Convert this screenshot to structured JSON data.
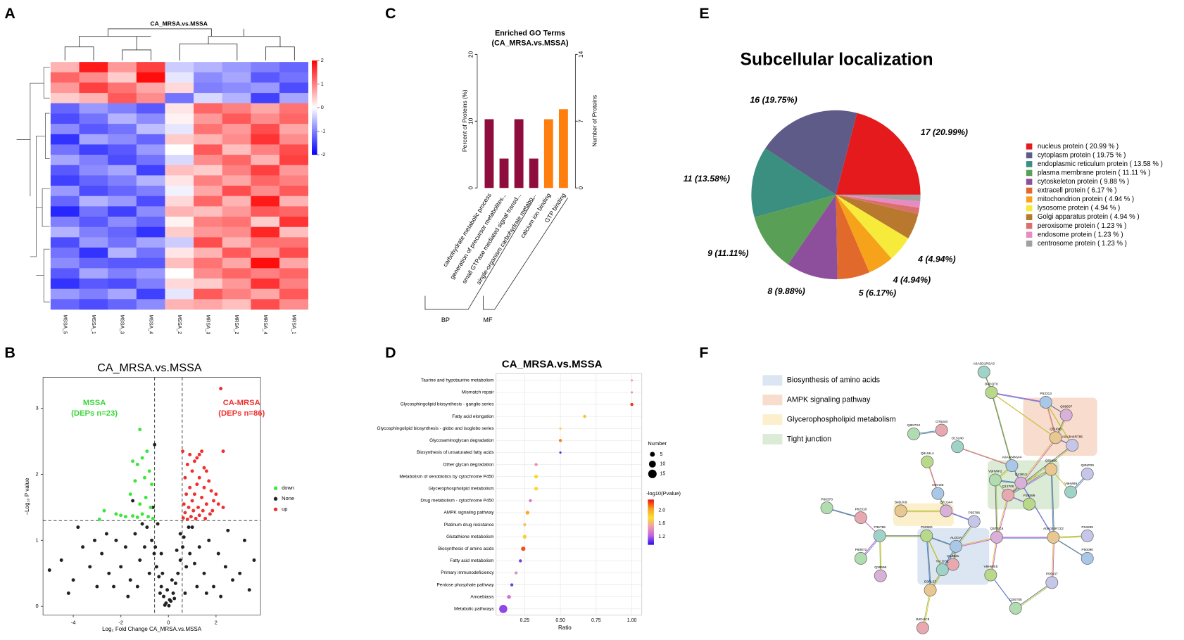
{
  "panel_labels": [
    "A",
    "B",
    "C",
    "D",
    "E",
    "F"
  ],
  "chart_data": [
    {
      "type": "heatmap",
      "title": "CA_MRSA.vs.MSSA",
      "columns": [
        "MSSA_5",
        "MSSA_1",
        "MSSA_3",
        "MSSA_4",
        "MSSA_2",
        "MRSA_3",
        "MRSA_2",
        "MRSA_4",
        "MRSA_1"
      ],
      "values": [
        [
          0.6,
          1.8,
          0.8,
          1.5,
          -0.4,
          -0.6,
          -0.8,
          -1.0,
          -1.2
        ],
        [
          1.2,
          0.9,
          0.4,
          1.9,
          -0.2,
          -0.9,
          -0.7,
          -1.3,
          -1.1
        ],
        [
          0.8,
          1.5,
          1.1,
          0.7,
          0.3,
          -1.0,
          -0.9,
          -0.8,
          -1.4
        ],
        [
          0.4,
          0.6,
          1.3,
          0.9,
          -1.1,
          -0.3,
          -0.6,
          -1.5,
          -0.7
        ],
        [
          -1.2,
          -0.8,
          -1.0,
          -1.3,
          0.2,
          1.2,
          1.0,
          0.7,
          1.1
        ],
        [
          -1.4,
          -1.1,
          -0.6,
          -0.9,
          0.1,
          0.8,
          1.3,
          0.9,
          1.2
        ],
        [
          -0.9,
          -1.3,
          -1.1,
          -0.5,
          -0.2,
          1.1,
          0.8,
          1.4,
          0.7
        ],
        [
          -1.6,
          -0.7,
          -0.9,
          -1.2,
          0.4,
          0.6,
          0.9,
          1.6,
          0.9
        ],
        [
          -1.1,
          -1.5,
          -1.3,
          -0.8,
          0.0,
          1.3,
          0.5,
          1.0,
          1.4
        ],
        [
          -0.7,
          -1.0,
          -1.4,
          -1.1,
          -0.3,
          0.9,
          1.2,
          0.6,
          1.5
        ],
        [
          -1.3,
          -0.9,
          -0.7,
          -1.5,
          0.5,
          0.4,
          1.0,
          1.5,
          0.8
        ],
        [
          -1.5,
          -1.2,
          -1.0,
          -0.6,
          0.2,
          1.0,
          0.7,
          1.2,
          1.0
        ],
        [
          -0.8,
          -1.4,
          -1.2,
          -1.0,
          -0.1,
          0.7,
          1.4,
          0.9,
          1.3
        ],
        [
          -1.2,
          -0.6,
          -0.8,
          -1.4,
          0.3,
          1.2,
          0.6,
          1.8,
          0.6
        ],
        [
          -1.7,
          -1.1,
          -1.5,
          -0.9,
          0.6,
          0.5,
          0.8,
          1.3,
          1.2
        ],
        [
          -1.0,
          -1.3,
          -0.9,
          -1.2,
          0.1,
          1.0,
          1.1,
          0.4,
          1.6
        ],
        [
          -0.6,
          -1.0,
          -1.2,
          -1.6,
          0.4,
          0.8,
          0.9,
          1.7,
          0.5
        ],
        [
          -1.4,
          -0.8,
          -1.1,
          -0.7,
          -0.4,
          1.4,
          0.6,
          1.1,
          1.1
        ],
        [
          -1.1,
          -1.6,
          -0.6,
          -1.1,
          0.2,
          0.6,
          1.3,
          0.8,
          1.4
        ],
        [
          -0.9,
          -1.2,
          -1.3,
          -1.3,
          0.5,
          1.1,
          0.7,
          1.9,
          0.7
        ],
        [
          -1.3,
          -0.7,
          -1.0,
          -0.8,
          0.0,
          0.9,
          1.2,
          1.0,
          1.2
        ],
        [
          -1.6,
          -1.3,
          -1.4,
          -1.0,
          0.3,
          0.4,
          0.8,
          1.6,
          1.0
        ],
        [
          -0.8,
          -1.0,
          -0.7,
          -1.5,
          -0.2,
          1.3,
          1.0,
          0.7,
          1.3
        ],
        [
          -1.2,
          -1.4,
          -1.2,
          -0.9,
          0.6,
          0.7,
          0.5,
          1.4,
          0.9
        ]
      ],
      "clim": [
        -2,
        2
      ],
      "cticks": [
        2,
        1,
        0,
        -1,
        -2
      ],
      "colors": [
        "#0000ff",
        "#ffffff",
        "#ff0000"
      ]
    },
    {
      "type": "scatter",
      "title": "CA_MRSA.vs.MSSA",
      "xlabel": "Log₂ Fold Change CA_MRSA.vs.MSSA",
      "ylabel": "−Log₁₀ P value",
      "xlim": [
        -5.27,
        3.87
      ],
      "ylim": [
        -0.13,
        3.47
      ],
      "xticks": [
        -4,
        -2,
        0,
        2
      ],
      "yticks": [
        0,
        1,
        2,
        3
      ],
      "thresholds": {
        "x": [
          -0.58,
          0.58
        ],
        "y": 1.3
      },
      "annotations": [
        {
          "text": "MSSA",
          "color": "#3ad63a"
        },
        {
          "text": "(DEPs n=23)",
          "color": "#3ad63a"
        },
        {
          "text": "CA-MRSA",
          "color": "#f03030"
        },
        {
          "text": "(DEPs n=86)",
          "color": "#f03030"
        }
      ],
      "series": [
        {
          "name": "down",
          "color": "#3ce63c",
          "x": [
            -1.2,
            -0.9,
            -1.1,
            -1.3,
            -0.8,
            -1.5,
            -1.0,
            -0.7,
            -1.4,
            -1.6,
            -0.95,
            -1.2,
            -0.75,
            -2.7,
            -2.2,
            -2.0,
            -1.8,
            -1.5,
            -1.3,
            -1.1,
            -0.85,
            -2.9,
            -0.65
          ],
          "values": [
            2.68,
            2.35,
            2.25,
            2.15,
            2.05,
            2.2,
            1.95,
            1.85,
            1.9,
            1.7,
            1.65,
            1.55,
            1.5,
            1.45,
            1.4,
            1.38,
            1.36,
            1.37,
            1.35,
            1.4,
            1.36,
            1.32,
            1.33
          ]
        },
        {
          "name": "None",
          "color": "#222222",
          "x": [
            -0.1,
            0.1,
            -0.2,
            0.2,
            -0.3,
            0.3,
            -0.15,
            0.05,
            -0.4,
            0.4,
            -0.5,
            0.5,
            -0.35,
            0.25,
            -0.6,
            0.6,
            -0.7,
            0.65,
            -0.8,
            0.75,
            -1.0,
            0.9,
            -1.2,
            1.1,
            -1.4,
            1.3,
            -1.6,
            1.5,
            -1.8,
            1.7,
            -2.0,
            1.9,
            -2.2,
            2.1,
            -2.5,
            2.4,
            -2.8,
            2.7,
            -3.0,
            3.0,
            -3.3,
            3.4,
            -3.6,
            -4.0,
            -4.5,
            -5.0,
            -0.9,
            0.85,
            -1.1,
            1.0,
            -0.45,
            0.5,
            -2.6,
            2.5,
            -3.8,
            -1.3,
            1.2,
            -0.55,
            0.7,
            -0.25,
            0.15,
            -1.7,
            1.6,
            -2.3,
            2.2,
            -3.1,
            3.2,
            -4.2,
            3.6,
            -0.65,
            -0.58,
            -1.5,
            -0.3,
            0.35,
            -0.05,
            0.02
          ],
          "values": [
            0.05,
            0.08,
            0.15,
            0.2,
            0.3,
            0.35,
            0.02,
            0.1,
            0.45,
            0.5,
            0.6,
            0.7,
            0.2,
            0.12,
            0.8,
            0.9,
            1.0,
            1.05,
            0.5,
            0.6,
            0.9,
            0.8,
            0.7,
            0.65,
            1.1,
            0.9,
            0.4,
            0.5,
            0.9,
            1.0,
            0.6,
            0.3,
            1.0,
            0.8,
            0.5,
            0.6,
            0.8,
            0.4,
            0.3,
            0.5,
            0.6,
            0.25,
            0.9,
            0.4,
            0.7,
            0.55,
            1.2,
            1.2,
            1.25,
            1.2,
            1.25,
            1.1,
            1.1,
            1.15,
            1.2,
            0.3,
            0.3,
            0.9,
            0.2,
            0.5,
            0.4,
            0.15,
            0.2,
            0.3,
            0.15,
            1.0,
            1.0,
            0.2,
            0.7,
            1.5,
            2.45,
            1.6,
            0.8,
            0.85,
            0.25,
            0.01
          ]
        },
        {
          "name": "up",
          "color": "#f03030",
          "x": [
            2.2,
            2.3,
            0.6,
            0.9,
            1.3,
            1.4,
            1.2,
            0.8,
            1.1,
            1.5,
            1.6,
            1.0,
            1.3,
            0.7,
            1.7,
            1.2,
            0.9,
            1.5,
            1.8,
            2.0,
            1.1,
            0.75,
            1.4,
            1.9,
            1.0,
            0.65,
            1.6,
            1.25,
            0.85,
            2.1,
            1.45,
            1.05,
            0.7,
            1.75,
            1.3,
            0.95,
            0.62,
            1.15,
            1.55,
            1.85,
            2.3,
            0.8
          ],
          "values": [
            3.3,
            2.35,
            2.35,
            2.3,
            2.3,
            2.35,
            2.25,
            2.15,
            2.2,
            2.1,
            2.05,
            2.05,
            1.95,
            1.95,
            1.9,
            1.85,
            1.8,
            1.8,
            1.75,
            1.7,
            1.7,
            1.7,
            1.65,
            1.6,
            1.6,
            1.55,
            1.55,
            1.5,
            1.5,
            1.55,
            1.45,
            1.45,
            1.42,
            1.4,
            1.38,
            1.36,
            1.34,
            1.33,
            1.33,
            1.45,
            1.5,
            1.32
          ]
        }
      ]
    },
    {
      "type": "bar",
      "title": "Enriched GO Terms",
      "subtitle": "(CA_MRSA.vs.MSSA)",
      "categories": [
        "carbohydrate metabolic process",
        "generation of precursor metabolites...",
        "small GTPase mediated signal transd...",
        "single-organism carbohydrate metabo...",
        "calcium ion binding",
        "GTP binding"
      ],
      "series": [
        {
          "name": "BP",
          "color": "#8e0d3c",
          "values": [
            10.3,
            4.4,
            10.3,
            4.4,
            null,
            null
          ]
        },
        {
          "name": "MF",
          "color": "#ff7f0e",
          "values": [
            null,
            null,
            null,
            null,
            10.3,
            11.8
          ]
        }
      ],
      "ylabel": "Percent of Proteins (%)",
      "y2label": "Number of Proteins",
      "ylim": [
        0,
        20
      ],
      "yticks": [
        0,
        10,
        20
      ],
      "y2lim": [
        0,
        14
      ],
      "y2ticks": [
        0,
        7,
        14
      ]
    },
    {
      "type": "bubble",
      "title": "CA_MRSA.vs.MSSA",
      "xlabel": "Ratio",
      "categories": [
        "Taurine and hypotaurine metabolism",
        "Mismatch repair",
        "Glycosphingolipid biosynthesis - ganglio series",
        "Fatty acid elongation",
        "Glycosphingolipid biosynthesis - globo and isoglobo series",
        "Glycosaminoglycan degradation",
        "Biosynthesis of unsaturated fatty acids",
        "Other glycan degradation",
        "Metabolism of xenobiotics by cytochrome P450",
        "Glycerophospholipid metabolism",
        "Drug metabolism - cytochrome P450",
        "AMPK signaling pathway",
        "Platinum drug resistance",
        "Glutathione metabolism",
        "Biosynthesis of amino acids",
        "Fatty acid metabolism",
        "Primary immunodeficiency",
        "Pentose phosphate pathway",
        "Amoebiasis",
        "Metabolic pathways"
      ],
      "x": [
        1.0,
        1.0,
        1.0,
        0.67,
        0.5,
        0.5,
        0.5,
        0.33,
        0.33,
        0.33,
        0.29,
        0.27,
        0.25,
        0.25,
        0.24,
        0.22,
        0.19,
        0.16,
        0.14,
        0.1
      ],
      "number": [
        1,
        1,
        2,
        2,
        1,
        2,
        1,
        2,
        3,
        3,
        2,
        3,
        2,
        3,
        4,
        2,
        2,
        2,
        3,
        14
      ],
      "pvalue": [
        1.5,
        1.45,
        2.25,
        1.9,
        1.85,
        2.1,
        1.05,
        1.45,
        1.8,
        1.8,
        1.35,
        2.0,
        1.65,
        1.85,
        2.2,
        1.1,
        1.45,
        1.1,
        1.3,
        1.15
      ],
      "xlim": [
        0.05,
        1.07
      ],
      "xticks": [
        0.25,
        {
          "value": 0.5,
          "label": "0.50"
        },
        0.75,
        {
          "value": 1,
          "label": "1.00"
        }
      ],
      "size_title": "Number",
      "size_ticks": [
        5,
        10,
        15
      ],
      "color_title": "-log10(Pvalue)",
      "clim": [
        0.96,
        2.32
      ],
      "cticks": [
        {
          "value": 2,
          "label": "2.0"
        },
        1.6,
        1.2
      ]
    },
    {
      "type": "pie",
      "title": "Subcellular localization",
      "categories": [
        "nucleus protein  ( 20.99 % )",
        "cytoplasm protein  ( 19.75 % )",
        "endoplasmic reticulum protein  ( 13.58 % )",
        "plasma membrane protein  ( 11.11 % )",
        "cytoskeleton protein  ( 9.88 % )",
        "extracell protein  ( 6.17 % )",
        "mitochondrion protein  ( 4.94 % )",
        "lysosome protein  ( 4.94 % )",
        "Golgi apparatus protein  ( 4.94 % )",
        "peroxisome protein  ( 1.23 % )",
        "endosome protein  ( 1.23 % )",
        "centrosome protein  ( 1.23 % )"
      ],
      "values": [
        17,
        16,
        11,
        9,
        8,
        5,
        4,
        4,
        4,
        1,
        1,
        1
      ],
      "value_labels": [
        "17 (20.99%)",
        "16 (19.75%)",
        "11 (13.58%)",
        "9 (11.11%)",
        "8 (9.88%)",
        "5 (6.17%)",
        "4 (4.94%)",
        "4 (4.94%)",
        null,
        null,
        null,
        null
      ],
      "colors": [
        "#e41a1c",
        "#5f5b89",
        "#3b8f80",
        "#5a9f56",
        "#8d4f9b",
        "#e0692b",
        "#f6a21b",
        "#f6eb3a",
        "#b8782e",
        "#d9706b",
        "#e68cc3",
        "#a0a0a0"
      ]
    }
  ],
  "network": {
    "legend": [
      {
        "text": "Biosynthesis of amino acids",
        "color": "#dbe6f2"
      },
      {
        "text": "AMPK signaling pathway",
        "color": "#f8dccd"
      },
      {
        "text": "Glycerophospholipid metabolism",
        "color": "#fbefcc"
      },
      {
        "text": "Tight junction",
        "color": "#dcebd6"
      }
    ],
    "nodes": [
      "A0A0D1RSA3",
      "B4DQT0",
      "P63313",
      "Q09607",
      "Q5U0I6",
      "A0A3H4R785",
      "Q8N7S2",
      "O75340",
      "O15240",
      "Q9UHL4",
      "A0A384NVI4",
      "Q13813",
      "Q58460",
      "Q8NP09",
      "V9HWF2",
      "Q13705",
      "V9HWI9",
      "P26599",
      "O3V3I8",
      "Q7LG44",
      "B4DJV9",
      "P55786",
      "P60370",
      "P62318",
      "P35785",
      "P60660",
      "ALDOA",
      "Q5TEC6",
      "A0A024R7Z2",
      "P04839",
      "P60872",
      "Q14831",
      "TALDO1",
      "V9HWE5",
      "P50090",
      "Q38696",
      "E9PL57",
      "P55437",
      "Q3ST05",
      "B4DUC8"
    ]
  }
}
